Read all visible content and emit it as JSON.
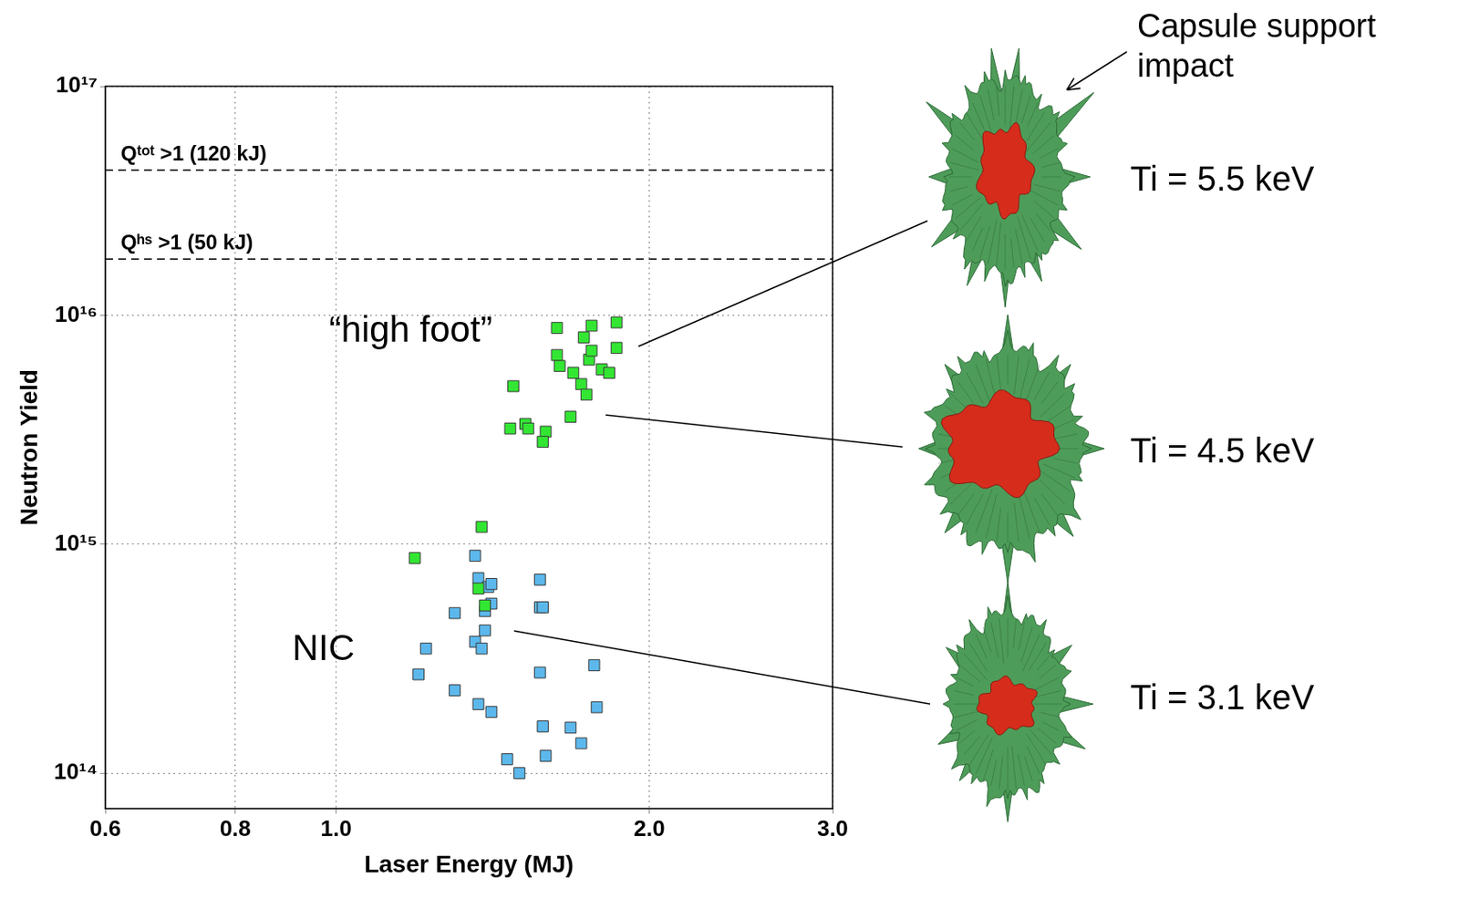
{
  "chart_data": {
    "type": "scatter",
    "x_label": "Laser Energy (MJ)",
    "y_label": "Neutron Yield",
    "log": true,
    "grid": true,
    "xlim": [
      0.6,
      3.0
    ],
    "xticks": [
      0.6,
      0.8,
      {
        "value": 1,
        "label": "1.0"
      },
      {
        "value": 2,
        "label": "2.0"
      },
      {
        "value": 3,
        "label": "3.0"
      }
    ],
    "ylim": [
      70000000000000.0,
      1e+17
    ],
    "yticks": [
      {
        "value": 100000000000000.0,
        "label": "10¹⁴"
      },
      {
        "value": 1000000000000000.0,
        "label": "10¹⁵"
      },
      {
        "value": 1e+16,
        "label": "10¹⁶"
      },
      {
        "value": 1e+17,
        "label": "10¹⁷"
      }
    ],
    "series": [
      {
        "name": "“high foot”",
        "color": "#33e633",
        "marker": "square",
        "x": [
          1.63,
          1.76,
          1.86,
          1.73,
          1.63,
          1.86,
          1.64,
          1.75,
          1.69,
          1.76,
          1.72,
          1.8,
          1.83,
          1.74,
          1.48,
          1.47,
          1.52,
          1.53,
          1.59,
          1.58,
          1.68,
          1.19,
          1.38,
          1.37,
          1.39
        ],
        "values": [
          8800000000000000.0,
          9000000000000000.0,
          9300000000000000.0,
          8000000000000000.0,
          6700000000000000.0,
          7200000000000000.0,
          6000000000000000.0,
          6400000000000000.0,
          5600000000000000.0,
          7000000000000000.0,
          5000000000000000.0,
          5800000000000000.0,
          5600000000000000.0,
          4500000000000000.0,
          4900000000000000.0,
          3200000000000000.0,
          3350000000000000.0,
          3200000000000000.0,
          3100000000000000.0,
          2800000000000000.0,
          3600000000000000.0,
          870000000000000.0,
          1190000000000000.0,
          640000000000000.0,
          540000000000000.0
        ]
      },
      {
        "name": "NIC",
        "color": "#5cb8ec",
        "marker": "square",
        "x": [
          1.36,
          1.37,
          1.4,
          1.41,
          1.41,
          1.39,
          1.3,
          1.39,
          1.36,
          1.38,
          1.22,
          1.2,
          1.3,
          1.37,
          1.41,
          1.57,
          1.57,
          1.58,
          1.57,
          1.77,
          1.78,
          1.58,
          1.68,
          1.72,
          1.59,
          1.46,
          1.5
        ],
        "values": [
          890000000000000.0,
          710000000000000.0,
          650000000000000.0,
          670000000000000.0,
          550000000000000.0,
          510000000000000.0,
          500000000000000.0,
          420000000000000.0,
          375000000000000.0,
          350000000000000.0,
          350000000000000.0,
          270000000000000.0,
          230000000000000.0,
          200000000000000.0,
          185000000000000.0,
          700000000000000.0,
          530000000000000.0,
          530000000000000.0,
          275000000000000.0,
          296000000000000.0,
          194000000000000.0,
          160000000000000.0,
          158000000000000.0,
          135000000000000.0,
          119000000000000.0,
          115000000000000.0,
          100000000000000.0
        ]
      }
    ],
    "reference_lines": [
      {
        "value": 4.3e+16,
        "label": "Qᵗᵒᵗ >1 (120 kJ)",
        "line_style": "dashed"
      },
      {
        "value": 1.76e+16,
        "label": "Qʰˢ >1 (50 kJ)",
        "line_style": "dashed"
      }
    ],
    "insets": [
      {
        "label": "Ti = 5.5 keV",
        "note": "Capsule support impact"
      },
      {
        "label": "Ti = 4.5 keV"
      },
      {
        "label": "Ti = 3.1 keV"
      }
    ]
  }
}
